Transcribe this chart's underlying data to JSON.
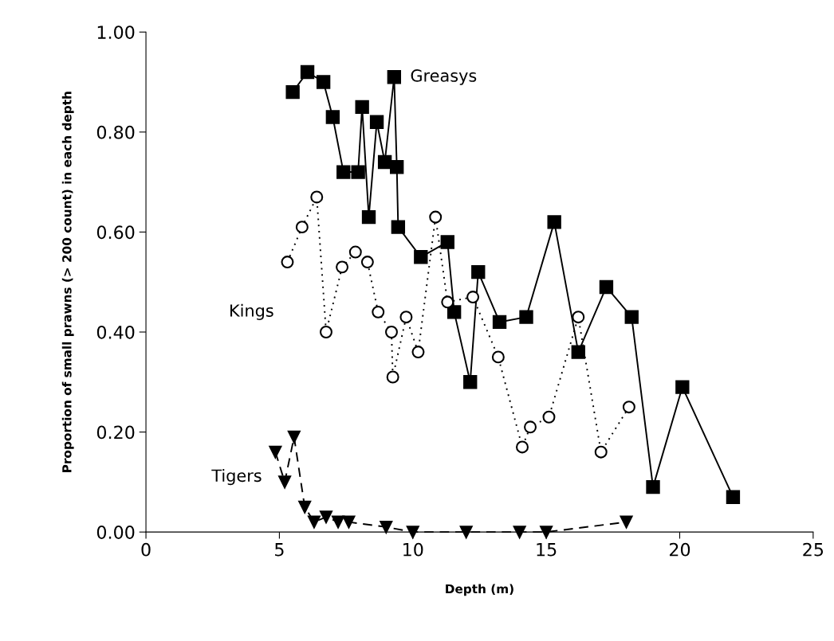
{
  "chart_data": {
    "type": "line",
    "xlabel": "Depth (m)",
    "ylabel": "Proportion of small prawns (> 200 count) in each depth",
    "xlim": [
      0,
      25
    ],
    "xticks": [
      0,
      5,
      10,
      15,
      20,
      25
    ],
    "ylim": [
      0,
      1
    ],
    "yticks": [
      {
        "value": 0,
        "label": "0.00"
      },
      {
        "value": 0.2,
        "label": "0.20"
      },
      {
        "value": 0.4,
        "label": "0.40"
      },
      {
        "value": 0.6,
        "label": "0.60"
      },
      {
        "value": 0.8,
        "label": "0.80"
      },
      {
        "value": 1,
        "label": "1.00"
      }
    ],
    "grid": false,
    "legend": false,
    "series": [
      {
        "name": "Greasys",
        "color": "#000000",
        "marker": "square",
        "line_style": "solid",
        "x": [
          5.5,
          6.05,
          6.65,
          7.0,
          7.4,
          7.95,
          8.1,
          8.35,
          8.65,
          8.95,
          9.3,
          9.4,
          9.45,
          10.3,
          11.3,
          11.55,
          12.15,
          12.45,
          13.25,
          14.25,
          15.3,
          16.2,
          17.25,
          18.2,
          19.0,
          20.1,
          22.0
        ],
        "values": [
          0.88,
          0.92,
          0.9,
          0.83,
          0.72,
          0.72,
          0.85,
          0.63,
          0.82,
          0.74,
          0.91,
          0.73,
          0.61,
          0.55,
          0.58,
          0.44,
          0.3,
          0.52,
          0.42,
          0.43,
          0.62,
          0.36,
          0.49,
          0.43,
          0.09,
          0.29,
          0.07
        ]
      },
      {
        "name": "Kings",
        "color": "#000000",
        "marker": "circle",
        "line_style": "dotted",
        "x": [
          5.3,
          5.85,
          6.4,
          6.75,
          7.35,
          7.85,
          8.3,
          8.7,
          9.2,
          9.25,
          9.75,
          10.2,
          10.85,
          11.3,
          12.25,
          13.2,
          14.1,
          14.4,
          15.1,
          16.2,
          17.05,
          18.1
        ],
        "values": [
          0.54,
          0.61,
          0.67,
          0.4,
          0.53,
          0.56,
          0.54,
          0.44,
          0.4,
          0.31,
          0.43,
          0.36,
          0.63,
          0.46,
          0.47,
          0.35,
          0.17,
          0.21,
          0.23,
          0.43,
          0.16,
          0.25
        ]
      },
      {
        "name": "Tigers",
        "color": "#000000",
        "marker": "triangle",
        "line_style": "dashed",
        "x": [
          4.85,
          5.2,
          5.55,
          5.95,
          6.3,
          6.75,
          7.2,
          7.6,
          9.0,
          10.0,
          12.0,
          14.0,
          15.0,
          18.0
        ],
        "values": [
          0.16,
          0.1,
          0.19,
          0.05,
          0.02,
          0.03,
          0.02,
          0.02,
          0.01,
          0.0,
          0.0,
          0.0,
          0.0,
          0.02
        ]
      }
    ]
  }
}
